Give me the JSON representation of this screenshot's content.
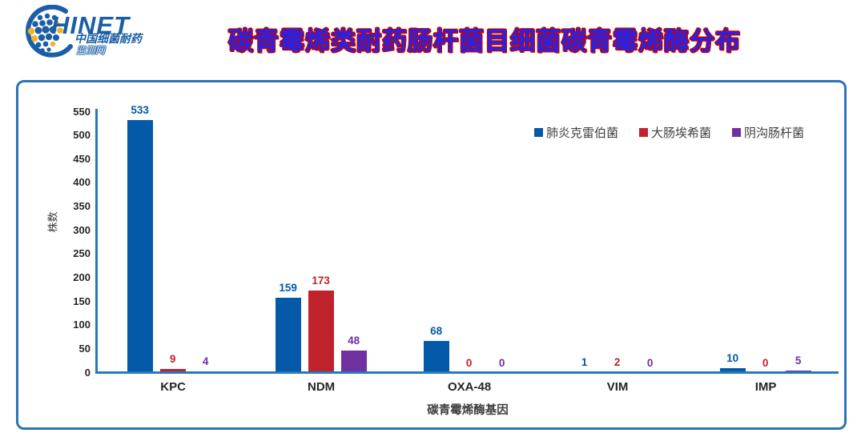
{
  "header": {
    "title": "碳青霉烯类耐药肠杆菌目细菌碳青霉烯酶分布",
    "logo": {
      "wordmark": "HINET",
      "subtitle1": "中国细菌耐药",
      "subtitle2": "监测网"
    }
  },
  "colors": {
    "frame_border": "#2E74B5",
    "axis_line": "#2779BE",
    "title_fill": "#2323EE",
    "title_outline": "#C40000",
    "logo_blue": "#1B5EA6",
    "logo_yellow": "#F2B32A",
    "tick_text": "#262626",
    "secondary_text": "#3F3F3F"
  },
  "chart_data": {
    "type": "bar",
    "title": "碳青霉烯类耐药肠杆菌目细菌碳青霉烯酶分布",
    "categories": [
      "KPC",
      "NDM",
      "OXA-48",
      "VIM",
      "IMP"
    ],
    "series": [
      {
        "name": "肺炎克雷伯菌",
        "color": "#0459A8",
        "values": [
          533,
          159,
          68,
          1,
          10
        ]
      },
      {
        "name": "大肠埃希菌",
        "color": "#C0232C",
        "values": [
          9,
          173,
          0,
          2,
          0
        ]
      },
      {
        "name": "阴沟肠杆菌",
        "color": "#7030A0",
        "values": [
          4,
          48,
          0,
          0,
          5
        ]
      }
    ],
    "xlabel": "碳青霉烯酶基因",
    "ylabel": "株数",
    "ylim": [
      0,
      550
    ],
    "ytick_step": 50,
    "grid": false,
    "legend_position": "top-right",
    "value_labels": true
  }
}
